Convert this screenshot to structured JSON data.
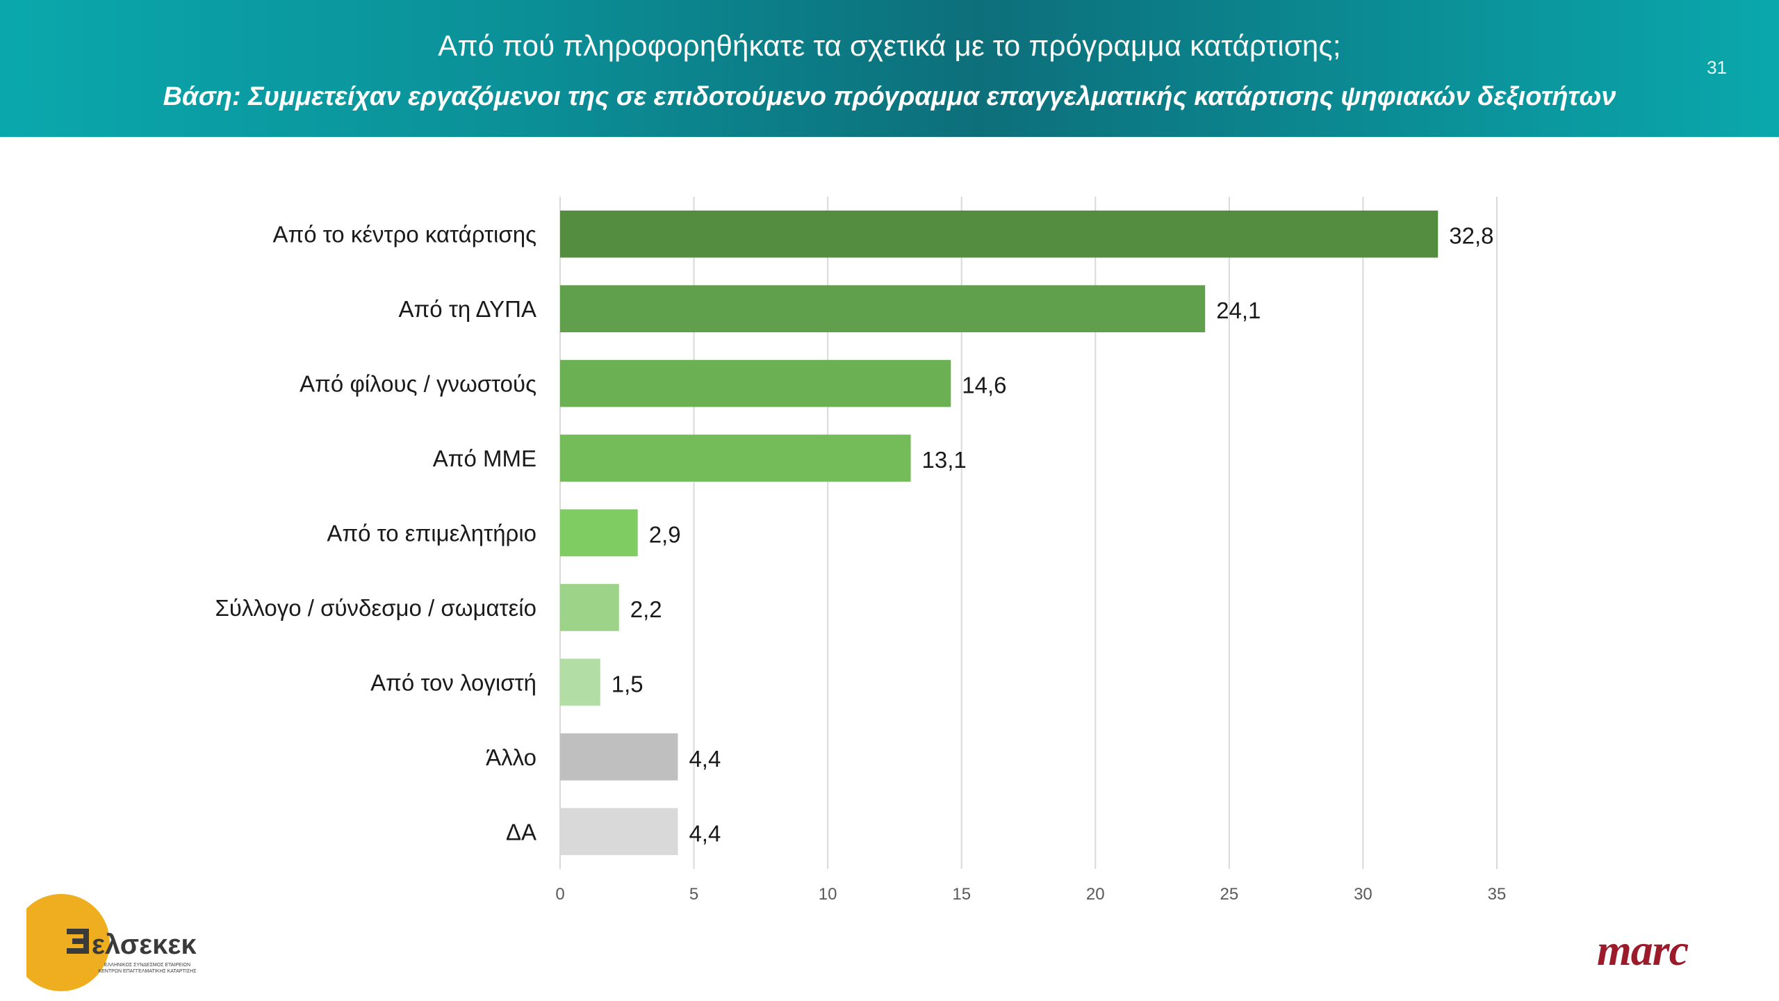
{
  "header": {
    "title": "Από πού πληροφορηθήκατε τα σχετικά με το πρόγραμμα κατάρτισης;",
    "subtitle": "Βάση: Συμμετείχαν εργαζόμενοι της σε επιδοτούμενο πρόγραμμα επαγγελματικής κατάρτισης ψηφιακών δεξιοτήτων",
    "page_number": "31"
  },
  "chart_data": {
    "type": "bar",
    "orientation": "horizontal",
    "categories": [
      "Από το κέντρο κατάρτισης",
      "Από τη ΔΥΠΑ",
      "Από φίλους / γνωστούς",
      "Από ΜΜΕ",
      "Από το επιμελητήριο",
      "Σύλλογο / σύνδεσμο / σωματείο",
      "Από τον λογιστή",
      "Άλλο",
      "ΔΑ"
    ],
    "values": [
      32.8,
      24.1,
      14.6,
      13.1,
      2.9,
      2.2,
      1.5,
      4.4,
      4.4
    ],
    "value_labels": [
      "32,8",
      "24,1",
      "14,6",
      "13,1",
      "2,9",
      "2,2",
      "1,5",
      "4,4",
      "4,4"
    ],
    "colors": [
      "#548c40",
      "#60a04c",
      "#6cb054",
      "#74bc5a",
      "#7fcc63",
      "#9cd388",
      "#b2dea6",
      "#bfbfbf",
      "#d9d9d9"
    ],
    "xlim": [
      0,
      35
    ],
    "xticks": [
      0,
      5,
      10,
      15,
      20,
      25,
      30,
      35
    ],
    "xtick_labels": [
      "0",
      "5",
      "10",
      "15",
      "20",
      "25",
      "30",
      "35"
    ],
    "grid": true,
    "title": "",
    "xlabel": "",
    "ylabel": ""
  },
  "logos": {
    "elsekek": {
      "name": "ελσεκεκ",
      "tagline_1": "ΕΛΛΗΝΙΚΟΣ ΣΥΝΔΕΣΜΟΣ ΕΤΑΙΡΕΙΩΝ",
      "tagline_2": "ΚΕΝΤΡΩΝ ΕΠΑΓΓΕΛΜΑΤΙΚΗΣ ΚΑΤΑΡΤΙΣΗΣ",
      "circle_color": "#efae1f",
      "text_color": "#3a3a3a"
    },
    "marc": {
      "text": "marc",
      "color": "#9b1b2a"
    }
  }
}
